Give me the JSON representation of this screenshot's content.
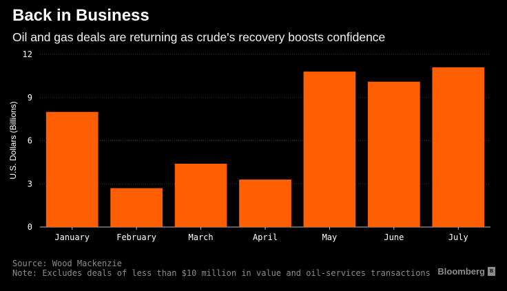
{
  "header": {
    "title": "Back in Business",
    "subtitle": "Oil and gas deals are returning as crude's recovery boosts confidence"
  },
  "footer": {
    "source": "Source: Wood Mackenzie",
    "note": "Note: Excludes deals of less than $10 million in value and oil-services transactions",
    "brand": "Bloomberg"
  },
  "colors": {
    "background": "#000000",
    "bar": "#ff5f00",
    "grid": "#3a3a3a",
    "tick_text": "#ffffff",
    "footer_text": "#8c8c8c"
  },
  "chart_data": {
    "type": "bar",
    "title": "Back in Business",
    "subtitle": "Oil and gas deals are returning as crude's recovery boosts confidence",
    "categories": [
      "January",
      "February",
      "March",
      "April",
      "May",
      "June",
      "July"
    ],
    "values": [
      8.0,
      2.7,
      4.4,
      3.3,
      10.8,
      10.1,
      11.1
    ],
    "xlabel": "",
    "ylabel": "U.S. Dollars (Billions)",
    "ylim": [
      0,
      12
    ],
    "yticks": [
      0,
      3,
      6,
      9,
      12
    ],
    "grid": true,
    "legend": "none"
  }
}
